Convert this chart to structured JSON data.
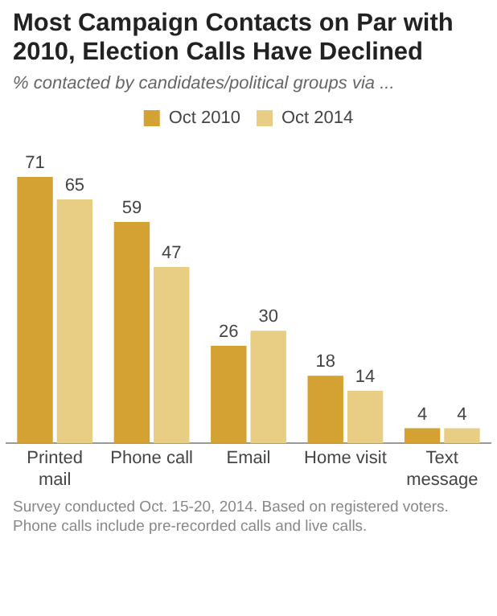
{
  "chart_data": {
    "type": "bar",
    "title": "Most Campaign Contacts on Par with 2010, Election Calls Have Declined",
    "subtitle": "% contacted by candidates/political groups via ...",
    "categories": [
      "Printed mail",
      "Phone call",
      "Email",
      "Home visit",
      "Text message"
    ],
    "series": [
      {
        "name": "Oct 2010",
        "color": "#d3a232",
        "values": [
          71,
          59,
          26,
          18,
          4
        ]
      },
      {
        "name": "Oct 2014",
        "color": "#e8cd85",
        "values": [
          65,
          47,
          30,
          14,
          4
        ]
      }
    ],
    "data_labels": true,
    "legend": "top",
    "tick_labels": "x",
    "grid": false,
    "annotations": [
      "Survey conducted Oct. 15-20, 2014. Based on registered voters. Phone calls include pre-recorded calls and live calls."
    ]
  }
}
